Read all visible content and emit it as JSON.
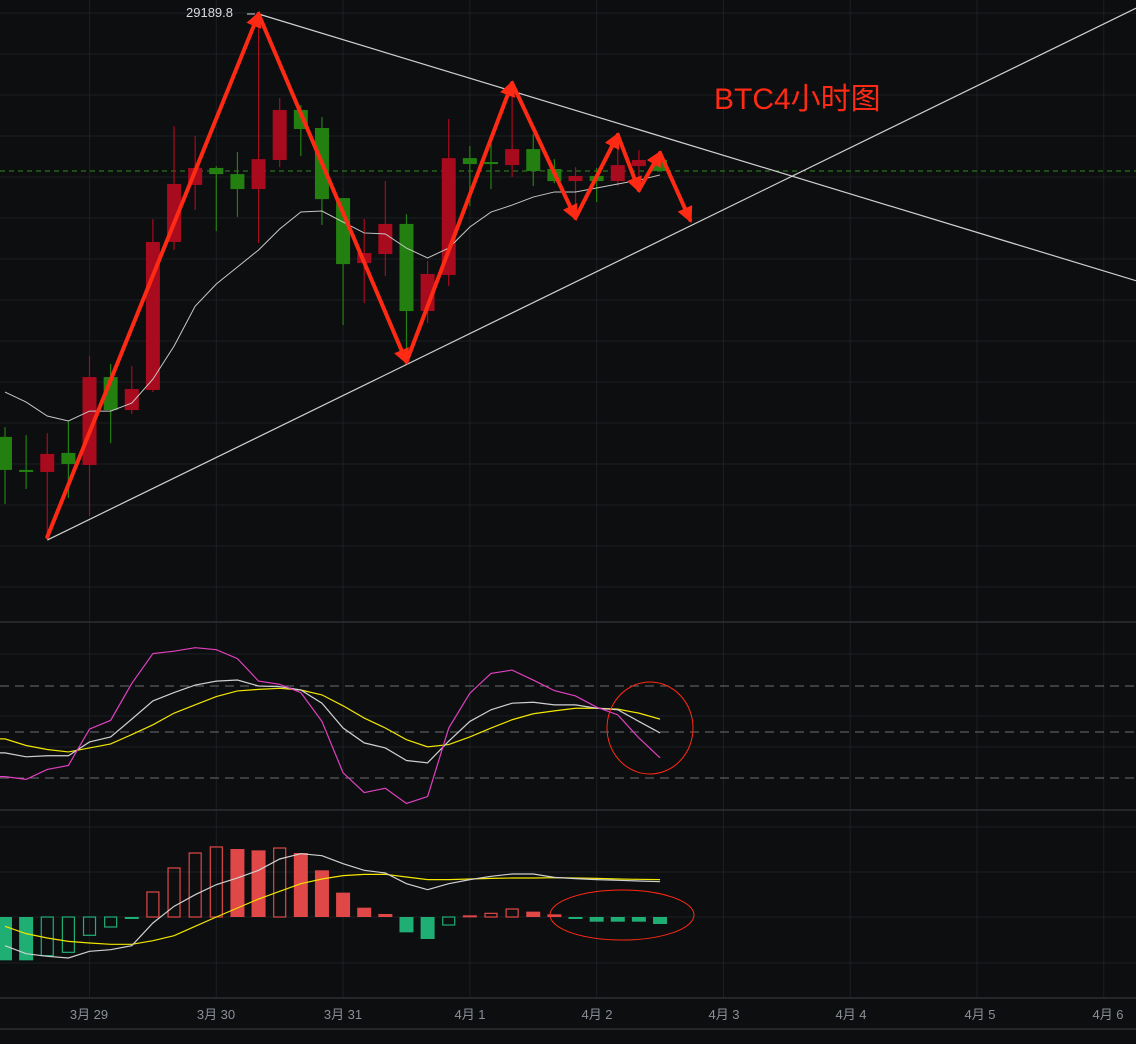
{
  "chart_data": {
    "type": "candlestick",
    "title": "BTC4小时图",
    "colors": {
      "background": "#0d0e10",
      "grid": "#1d1f23",
      "up_candle": "#a80a1e",
      "down_candle": "#238010",
      "ma_line": "#c8c8c8",
      "last_price_line": "#2f8f1a",
      "annotation_red": "#ff2a14",
      "trendline": "#d0d0d0"
    },
    "x_ticks": [
      "3月 29",
      "3月 30",
      "3月 31",
      "4月 1",
      "4月 2",
      "4月 3",
      "4月 4",
      "4月 5",
      "4月 6"
    ],
    "high_label": "29189.8",
    "last_price": 28424,
    "candles": [
      {
        "t": "03-28 08:00",
        "o": 27127,
        "h": 27175,
        "l": 26800,
        "c": 26966
      },
      {
        "t": "03-28 12:00",
        "o": 26966,
        "h": 27136,
        "l": 26873,
        "c": 26956
      },
      {
        "t": "03-28 16:00",
        "o": 26956,
        "h": 27146,
        "l": 26639,
        "c": 27044
      },
      {
        "t": "03-28 20:00",
        "o": 27049,
        "h": 27205,
        "l": 26829,
        "c": 26995
      },
      {
        "t": "03-29 00:00",
        "o": 26990,
        "h": 27522,
        "l": 26741,
        "c": 27419
      },
      {
        "t": "03-29 04:00",
        "o": 27419,
        "h": 27483,
        "l": 27097,
        "c": 27258
      },
      {
        "t": "03-29 08:00",
        "o": 27258,
        "h": 27473,
        "l": 27239,
        "c": 27361
      },
      {
        "t": "03-29 12:00",
        "o": 27356,
        "h": 28190,
        "l": 27346,
        "c": 28078
      },
      {
        "t": "03-29 16:00",
        "o": 28078,
        "h": 28643,
        "l": 28039,
        "c": 28361
      },
      {
        "t": "03-29 20:00",
        "o": 28356,
        "h": 28595,
        "l": 28234,
        "c": 28439
      },
      {
        "t": "03-30 00:00",
        "o": 28439,
        "h": 28448,
        "l": 28131,
        "c": 28409
      },
      {
        "t": "03-30 04:00",
        "o": 28409,
        "h": 28517,
        "l": 28200,
        "c": 28336
      },
      {
        "t": "03-30 08:00",
        "o": 28336,
        "h": 29190,
        "l": 28073,
        "c": 28482
      },
      {
        "t": "03-30 12:00",
        "o": 28478,
        "h": 28780,
        "l": 28443,
        "c": 28722
      },
      {
        "t": "03-30 16:00",
        "o": 28722,
        "h": 28746,
        "l": 28497,
        "c": 28629
      },
      {
        "t": "03-30 20:00",
        "o": 28634,
        "h": 28687,
        "l": 28161,
        "c": 28287
      },
      {
        "t": "03-31 00:00",
        "o": 28292,
        "h": 28292,
        "l": 27673,
        "c": 27970
      },
      {
        "t": "03-31 04:00",
        "o": 27975,
        "h": 28190,
        "l": 27780,
        "c": 28024
      },
      {
        "t": "03-31 08:00",
        "o": 28019,
        "h": 28375,
        "l": 27912,
        "c": 28166
      },
      {
        "t": "03-31 12:00",
        "o": 28166,
        "h": 28214,
        "l": 27488,
        "c": 27741
      },
      {
        "t": "03-31 16:00",
        "o": 27741,
        "h": 27985,
        "l": 27683,
        "c": 27922
      },
      {
        "t": "03-31 20:00",
        "o": 27917,
        "h": 28678,
        "l": 27863,
        "c": 28487
      },
      {
        "t": "04-01 00:00",
        "o": 28487,
        "h": 28546,
        "l": 28253,
        "c": 28458
      },
      {
        "t": "04-01 04:00",
        "o": 28468,
        "h": 28570,
        "l": 28336,
        "c": 28458
      },
      {
        "t": "04-01 08:00",
        "o": 28453,
        "h": 28843,
        "l": 28395,
        "c": 28531
      },
      {
        "t": "04-01 12:00",
        "o": 28531,
        "h": 28604,
        "l": 28351,
        "c": 28424
      },
      {
        "t": "04-01 16:00",
        "o": 28434,
        "h": 28482,
        "l": 28365,
        "c": 28375
      },
      {
        "t": "04-01 20:00",
        "o": 28375,
        "h": 28443,
        "l": 28185,
        "c": 28400
      },
      {
        "t": "04-02 00:00",
        "o": 28400,
        "h": 28439,
        "l": 28273,
        "c": 28375
      },
      {
        "t": "04-02 04:00",
        "o": 28375,
        "h": 28585,
        "l": 28351,
        "c": 28453
      },
      {
        "t": "04-02 08:00",
        "o": 28448,
        "h": 28526,
        "l": 28336,
        "c": 28478
      },
      {
        "t": "04-02 12:00",
        "o": 28478,
        "h": 28492,
        "l": 28424,
        "c": 28424
      }
    ],
    "ma": [
      27346,
      27297,
      27229,
      27205,
      27253,
      27253,
      27292,
      27409,
      27570,
      27765,
      27873,
      27956,
      28039,
      28141,
      28224,
      28229,
      28175,
      28122,
      28117,
      28048,
      28000,
      28048,
      28151,
      28224,
      28258,
      28297,
      28322,
      28322,
      28341,
      28361,
      28380,
      28405
    ],
    "trendlines": [
      {
        "points": [
          {
            "t": "03-30 08:00",
            "p": 29190
          },
          {
            "t": "04-01 08:00",
            "p": 28814
          }
        ]
      },
      {
        "points": [
          {
            "t": "03-28 16:00",
            "p": 26624
          },
          {
            "t": "03-31 12:00",
            "p": 27480
          }
        ]
      }
    ],
    "zigzag": [
      {
        "t": "03-28 16:00",
        "p": 26639
      },
      {
        "t": "03-30 08:00",
        "p": 29190
      },
      {
        "t": "03-31 12:00",
        "p": 27493
      },
      {
        "t": "04-01 08:00",
        "p": 28853
      },
      {
        "t": "04-01 20:00",
        "p": 28195
      },
      {
        "t": "04-02 04:00",
        "p": 28600
      },
      {
        "t": "04-02 08:00",
        "p": 28331
      },
      {
        "t": "04-02 12:00",
        "p": 28512
      },
      {
        "t": "04-02 16:00",
        "p": 28185
      }
    ],
    "kdj": {
      "levels": [
        80,
        50,
        20
      ],
      "k": [
        36.4,
        33.8,
        34.5,
        34.5,
        43.5,
        46.8,
        58.4,
        70.3,
        75.7,
        80.6,
        83.2,
        83.9,
        80.0,
        79.6,
        77.4,
        68.8,
        52.6,
        42.9,
        39.6,
        31.4,
        29.9,
        44.0,
        56.9,
        64.5,
        68.8,
        69.4,
        67.7,
        67.7,
        65.5,
        64.5,
        56.9,
        49.4
      ],
      "d": [
        45.5,
        41.2,
        38.6,
        37.0,
        39.6,
        42.2,
        48.3,
        54.7,
        62.3,
        67.7,
        73.1,
        76.8,
        77.8,
        78.5,
        77.4,
        74.2,
        67.1,
        59.1,
        52.6,
        45.0,
        40.3,
        41.8,
        46.8,
        52.6,
        58.0,
        61.9,
        63.8,
        65.5,
        65.5,
        64.9,
        62.3,
        58.4
      ],
      "j": [
        20.9,
        19.1,
        25.6,
        28.2,
        51.9,
        57.6,
        81.7,
        101.2,
        102.7,
        105.0,
        103.7,
        97.9,
        83.2,
        81.1,
        75.7,
        56.9,
        23.4,
        10.5,
        13.3,
        3.4,
        7.9,
        52.6,
        75.3,
        88.2,
        90.4,
        83.9,
        77.0,
        73.5,
        66.2,
        61.2,
        46.1,
        33.2
      ],
      "colors": {
        "k": "#d0d0d0",
        "d": "#f2e600",
        "j": "#e040c0"
      },
      "circled_from": "04-02 04:00"
    },
    "macd": {
      "hist": [
        -96.3,
        -96.3,
        -85.9,
        -78.5,
        -40.7,
        -22.2,
        -4.4,
        55.6,
        108.9,
        142.2,
        155.6,
        151.1,
        148.1,
        153.3,
        142.2,
        103.7,
        54.1,
        20.7,
        6.7,
        -34.1,
        -48.9,
        -17.8,
        3.7,
        8.1,
        17.8,
        11.9,
        5.9,
        -4.4,
        -10.4,
        -10.4,
        -10.4,
        -15.6
      ],
      "hollow": [
        false,
        false,
        true,
        true,
        true,
        true,
        false,
        true,
        true,
        true,
        true,
        false,
        false,
        true,
        false,
        false,
        false,
        false,
        false,
        false,
        false,
        true,
        false,
        true,
        true,
        false,
        false,
        false,
        false,
        false,
        false,
        false
      ],
      "dif": [
        -63.7,
        -81.5,
        -87.4,
        -91.1,
        -76.3,
        -72.6,
        -63.7,
        -13.3,
        23.7,
        49.6,
        71.9,
        86.7,
        103.7,
        128.9,
        140.7,
        136.3,
        118.5,
        103.7,
        97.8,
        74.1,
        60.7,
        74.1,
        83.0,
        90.4,
        95.6,
        95.6,
        88.1,
        85.2,
        83.0,
        81.5,
        80.0,
        78.5
      ],
      "dea": [
        -20.7,
        -37.0,
        -46.7,
        -54.1,
        -57.8,
        -60.7,
        -60.7,
        -52.6,
        -41.5,
        -20.7,
        0,
        20.0,
        40.0,
        57.0,
        74.1,
        84.4,
        91.9,
        94.8,
        94.8,
        88.9,
        83.0,
        83.0,
        84.4,
        85.9,
        86.7,
        86.7,
        87.4,
        86.7,
        85.9,
        84.4,
        83.7,
        83.0
      ],
      "colors": {
        "up": "#e04848",
        "down": "#1fae74",
        "dif": "#d0d0d0",
        "dea": "#f2e600"
      },
      "circled_from": "04-01 20:00"
    }
  }
}
